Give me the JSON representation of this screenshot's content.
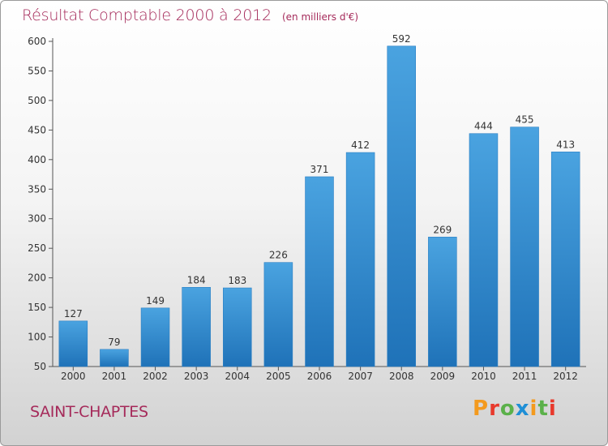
{
  "chart_data": {
    "type": "bar",
    "title": "Résultat Comptable 2000 à 2012",
    "subtitle": "(en milliers d'€)",
    "categories": [
      "2000",
      "2001",
      "2002",
      "2003",
      "2004",
      "2005",
      "2006",
      "2007",
      "2008",
      "2009",
      "2010",
      "2011",
      "2012"
    ],
    "values": [
      127,
      79,
      149,
      184,
      183,
      226,
      371,
      412,
      592,
      269,
      444,
      455,
      413
    ],
    "ylim": [
      50,
      600
    ],
    "yticks": [
      50,
      100,
      150,
      200,
      250,
      300,
      350,
      400,
      450,
      500,
      550,
      600
    ],
    "grid": false,
    "bar_color": "#4aa3e0",
    "bar_color_dark": "#1f72b8",
    "xlabel": "",
    "ylabel": ""
  },
  "place_name": "SAINT-CHAPTES",
  "logo": {
    "text": "Proxiti",
    "colors": [
      "#f39a1e",
      "#e8392c",
      "#5bb14a",
      "#1f8fd6",
      "#f39a1e",
      "#5bb14a",
      "#e8392c"
    ]
  },
  "title_color": "#a52a5a"
}
